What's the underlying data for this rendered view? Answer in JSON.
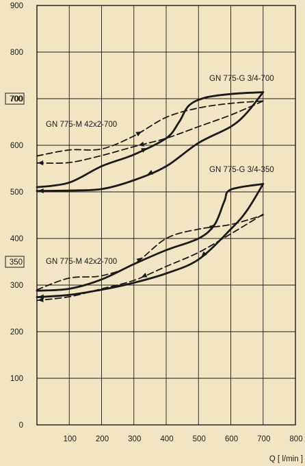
{
  "chart_data": {
    "type": "line",
    "xlabel": "Q [ l/min ]",
    "ylabel": "",
    "xlim": [
      0,
      800
    ],
    "ylim": [
      0,
      900
    ],
    "x_ticks": [
      100,
      200,
      300,
      400,
      500,
      600,
      700,
      800
    ],
    "y_ticks": [
      0,
      100,
      200,
      300,
      400,
      500,
      600,
      700,
      800,
      900
    ],
    "y_boxed_ticks": [
      "700",
      "350"
    ],
    "grid": true,
    "annotations": [
      {
        "text": "GN 775-G 3/4-700"
      },
      {
        "text": "GN 775-M 42x2-700"
      },
      {
        "text": "GN 775-G 3/4-350"
      },
      {
        "text": "GN 775-M 42x2-700"
      }
    ],
    "series": [
      {
        "style": "solid",
        "group": "upper",
        "x": [
          0,
          100,
          200,
          300,
          400,
          440,
          470,
          520,
          600,
          700
        ],
        "y": [
          510,
          520,
          555,
          580,
          615,
          650,
          685,
          702,
          710,
          714
        ]
      },
      {
        "style": "solid",
        "group": "upper",
        "x": [
          700,
          650,
          600,
          500,
          400,
          300,
          200,
          100,
          0
        ],
        "y": [
          714,
          670,
          640,
          605,
          555,
          525,
          506,
          503,
          502
        ]
      },
      {
        "style": "dashed",
        "group": "upper",
        "x": [
          0,
          100,
          200,
          300,
          400,
          500,
          600,
          700
        ],
        "y": [
          577,
          590,
          592,
          620,
          660,
          680,
          690,
          695
        ]
      },
      {
        "style": "dashed",
        "group": "upper",
        "x": [
          700,
          600,
          500,
          400,
          300,
          200,
          100,
          0
        ],
        "y": [
          695,
          665,
          640,
          615,
          597,
          578,
          563,
          562
        ]
      },
      {
        "style": "solid",
        "group": "lower",
        "x": [
          0,
          100,
          200,
          300,
          400,
          500,
          550,
          580,
          600,
          700
        ],
        "y": [
          288,
          292,
          312,
          345,
          375,
          400,
          430,
          480,
          505,
          517
        ]
      },
      {
        "style": "solid",
        "group": "lower",
        "x": [
          700,
          650,
          600,
          500,
          400,
          300,
          200,
          100,
          0
        ],
        "y": [
          517,
          460,
          420,
          355,
          325,
          305,
          290,
          279,
          274
        ]
      },
      {
        "style": "dashed",
        "group": "lower",
        "x": [
          0,
          100,
          200,
          300,
          400,
          500,
          600,
          700
        ],
        "y": [
          290,
          315,
          320,
          345,
          400,
          420,
          430,
          450
        ]
      },
      {
        "style": "dashed",
        "group": "lower",
        "x": [
          700,
          600,
          500,
          400,
          300,
          200,
          100,
          0
        ],
        "y": [
          452,
          410,
          370,
          340,
          310,
          292,
          275,
          267
        ]
      }
    ]
  }
}
